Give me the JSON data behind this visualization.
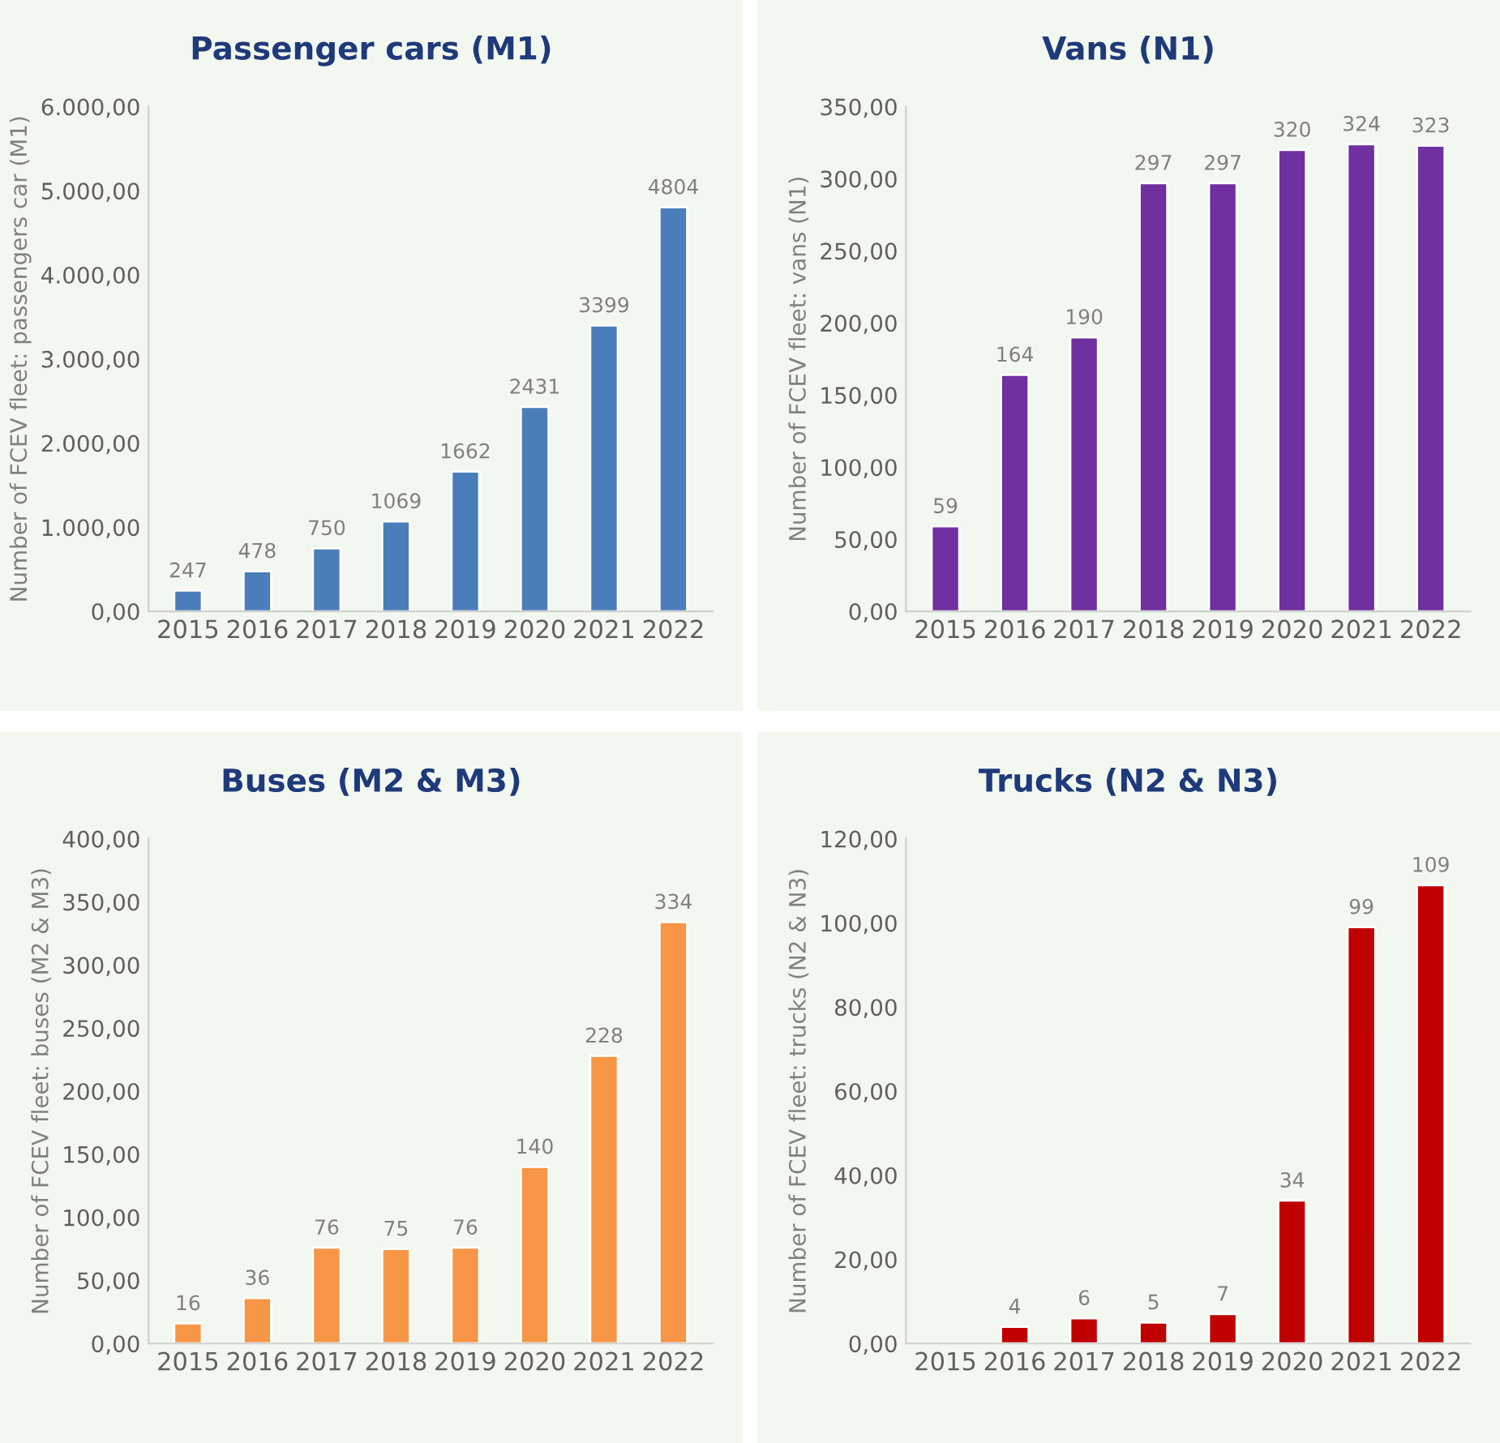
{
  "chart_data": [
    {
      "type": "bar",
      "title": "Passenger cars (M1)",
      "ylabel": "Number of FCEV fleet: passengers car (M1)",
      "categories": [
        "2015",
        "2016",
        "2017",
        "2018",
        "2019",
        "2020",
        "2021",
        "2022"
      ],
      "values": [
        247,
        478,
        750,
        1069,
        1662,
        2431,
        3399,
        4804
      ],
      "color": "#4a7ebb",
      "ylim": [
        0,
        6000
      ],
      "yticks": [
        {
          "value": 0,
          "label": "0,00"
        },
        {
          "value": 1000,
          "label": "1.000,00"
        },
        {
          "value": 2000,
          "label": "2.000,00"
        },
        {
          "value": 3000,
          "label": "3.000,00"
        },
        {
          "value": 4000,
          "label": "4.000,00"
        },
        {
          "value": 5000,
          "label": "5.000,00"
        },
        {
          "value": 6000,
          "label": "6.000,00"
        }
      ],
      "data_labels": true,
      "grid": false
    },
    {
      "type": "bar",
      "title": "Vans (N1)",
      "ylabel": "Number of FCEV fleet: vans (N1)",
      "categories": [
        "2015",
        "2016",
        "2017",
        "2018",
        "2019",
        "2020",
        "2021",
        "2022"
      ],
      "values": [
        59,
        164,
        190,
        297,
        297,
        320,
        324,
        323
      ],
      "color": "#7030a0",
      "ylim": [
        0,
        350
      ],
      "yticks": [
        {
          "value": 0,
          "label": "0,00"
        },
        {
          "value": 50,
          "label": "50,00"
        },
        {
          "value": 100,
          "label": "100,00"
        },
        {
          "value": 150,
          "label": "150,00"
        },
        {
          "value": 200,
          "label": "200,00"
        },
        {
          "value": 250,
          "label": "250,00"
        },
        {
          "value": 300,
          "label": "300,00"
        },
        {
          "value": 350,
          "label": "350,00"
        }
      ],
      "data_labels": true,
      "grid": false
    },
    {
      "type": "bar",
      "title": "Buses (M2 & M3)",
      "ylabel": "Number of FCEV fleet: buses (M2 & M3)",
      "categories": [
        "2015",
        "2016",
        "2017",
        "2018",
        "2019",
        "2020",
        "2021",
        "2022"
      ],
      "values": [
        16,
        36,
        76,
        75,
        76,
        140,
        228,
        334
      ],
      "color": "#f79646",
      "ylim": [
        0,
        400
      ],
      "yticks": [
        {
          "value": 0,
          "label": "0,00"
        },
        {
          "value": 50,
          "label": "50,00"
        },
        {
          "value": 100,
          "label": "100,00"
        },
        {
          "value": 150,
          "label": "150,00"
        },
        {
          "value": 200,
          "label": "200,00"
        },
        {
          "value": 250,
          "label": "250,00"
        },
        {
          "value": 300,
          "label": "300,00"
        },
        {
          "value": 350,
          "label": "350,00"
        },
        {
          "value": 400,
          "label": "400,00"
        }
      ],
      "data_labels": true,
      "grid": false
    },
    {
      "type": "bar",
      "title": "Trucks (N2 & N3)",
      "ylabel": "Number of FCEV fleet: trucks (N2 & N3)",
      "categories": [
        "2015",
        "2016",
        "2017",
        "2018",
        "2019",
        "2020",
        "2021",
        "2022"
      ],
      "values": [
        null,
        4,
        6,
        5,
        7,
        34,
        99,
        109
      ],
      "color": "#c00000",
      "ylim": [
        0,
        120
      ],
      "yticks": [
        {
          "value": 0,
          "label": "0,00"
        },
        {
          "value": 20,
          "label": "20,00"
        },
        {
          "value": 40,
          "label": "40,00"
        },
        {
          "value": 60,
          "label": "60,00"
        },
        {
          "value": 80,
          "label": "80,00"
        },
        {
          "value": 100,
          "label": "100,00"
        },
        {
          "value": 120,
          "label": "120,00"
        }
      ],
      "data_labels": true,
      "grid": false
    }
  ]
}
